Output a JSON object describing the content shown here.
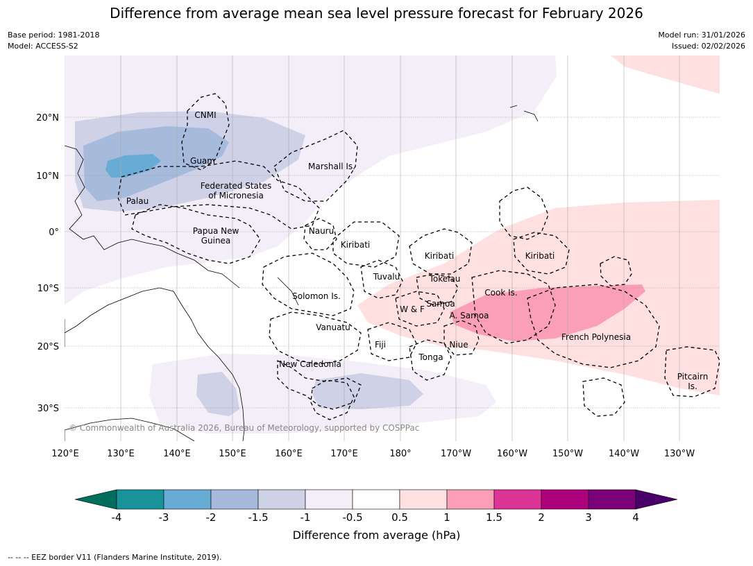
{
  "title": "Difference from average mean sea level pressure forecast for February 2026",
  "meta": {
    "base_period": "Base period: 1981-2018",
    "model": "Model: ACCESS-S2",
    "model_run": "Model run: 31/01/2026",
    "issued": "Issued: 02/02/2026"
  },
  "map": {
    "lat_labels": [
      "20°N",
      "10°N",
      "0°",
      "10°S",
      "20°S",
      "30°S"
    ],
    "lon_labels": [
      "120°E",
      "130°E",
      "140°E",
      "150°E",
      "160°E",
      "170°E",
      "180°",
      "170°W",
      "160°W",
      "150°W",
      "140°W",
      "130°W"
    ],
    "places": [
      {
        "id": "cnmi",
        "lines": [
          "CNMI"
        ]
      },
      {
        "id": "guam",
        "lines": [
          "Guam"
        ]
      },
      {
        "id": "marshall",
        "lines": [
          "Marshall Is."
        ]
      },
      {
        "id": "fsm",
        "lines": [
          "Federated States",
          "of Micronesia"
        ]
      },
      {
        "id": "palau",
        "lines": [
          "Palau"
        ]
      },
      {
        "id": "png",
        "lines": [
          "Papua New",
          "Guinea"
        ]
      },
      {
        "id": "nauru",
        "lines": [
          "Nauru"
        ]
      },
      {
        "id": "kiribati1",
        "lines": [
          "Kiribati"
        ]
      },
      {
        "id": "kiribati2",
        "lines": [
          "Kiribati"
        ]
      },
      {
        "id": "kiribati3",
        "lines": [
          "Kiribati"
        ]
      },
      {
        "id": "tuvalu",
        "lines": [
          "Tuvalu"
        ]
      },
      {
        "id": "tokelau",
        "lines": [
          "Tokelau"
        ]
      },
      {
        "id": "solomon",
        "lines": [
          "Solomon Is."
        ]
      },
      {
        "id": "cook",
        "lines": [
          "Cook Is."
        ]
      },
      {
        "id": "wf",
        "lines": [
          "W & F"
        ]
      },
      {
        "id": "samoa",
        "lines": [
          "Samoa"
        ]
      },
      {
        "id": "asamoa",
        "lines": [
          "A. Samoa"
        ]
      },
      {
        "id": "vanuatu",
        "lines": [
          "Vanuatu"
        ]
      },
      {
        "id": "fiji",
        "lines": [
          "Fiji"
        ]
      },
      {
        "id": "niue",
        "lines": [
          "Niue"
        ]
      },
      {
        "id": "tonga",
        "lines": [
          "Tonga"
        ]
      },
      {
        "id": "frpoly",
        "lines": [
          "French Polynesia"
        ]
      },
      {
        "id": "newcal",
        "lines": [
          "New Caledonia"
        ]
      },
      {
        "id": "pitcairn",
        "lines": [
          "Pitcairn",
          "Is."
        ]
      }
    ],
    "copyright": "© Commonwealth of Australia 2026, Bureau of Meteorology, supported by COSPPac"
  },
  "colorbar": {
    "ticks": [
      "-4",
      "-3",
      "-2",
      "-1.5",
      "-1",
      "-0.5",
      "0.5",
      "1",
      "1.5",
      "2",
      "3",
      "4"
    ],
    "colors": [
      "#1a9299",
      "#68acd5",
      "#a6badb",
      "#cfd1e7",
      "#f3eef7",
      "#ffffff",
      "#fde0df",
      "#fa9fb5",
      "#dd3497",
      "#ae017e",
      "#7a0177"
    ],
    "under_color": "#006d5e",
    "over_color": "#49006a",
    "label": "Difference from average (hPa)"
  },
  "footer": "--  --  -- EEZ border V11 (Flanders Marine Institute, 2019)."
}
